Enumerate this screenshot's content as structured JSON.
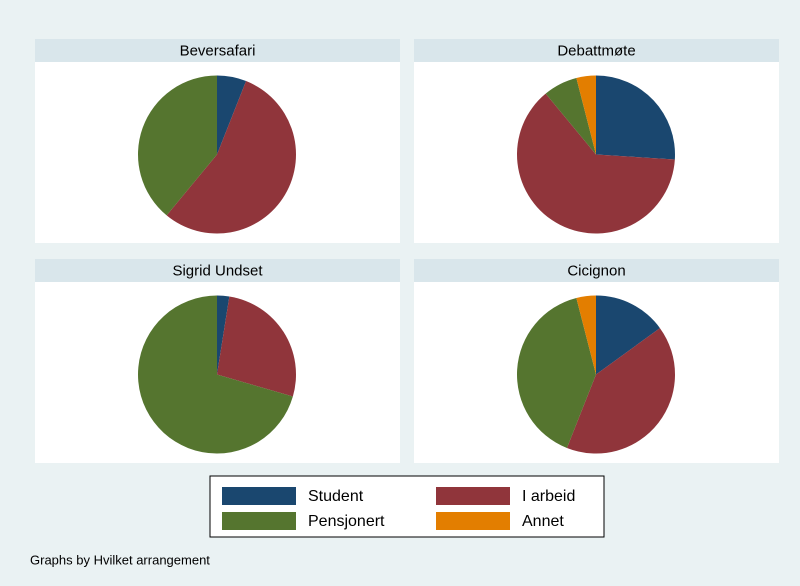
{
  "chart_data": [
    {
      "type": "pie",
      "title": "Beversafari",
      "values": [
        6,
        55,
        39
      ]
    },
    {
      "type": "pie",
      "title": "Debattmøte",
      "values": [
        26,
        63,
        7,
        4
      ]
    },
    {
      "type": "pie",
      "title": "Sigrid Undset",
      "values": [
        2.5,
        27,
        70.5
      ]
    },
    {
      "type": "pie",
      "title": "Cicignon",
      "values": [
        15,
        41,
        40,
        4
      ]
    }
  ],
  "legend": {
    "categories": [
      "Student",
      "I arbeid",
      "Pensjonert",
      "Annet"
    ],
    "colors": [
      "#1a476f",
      "#90353b",
      "#55752f",
      "#e37e00"
    ]
  },
  "note": "Graphs by Hvilket arrangement"
}
